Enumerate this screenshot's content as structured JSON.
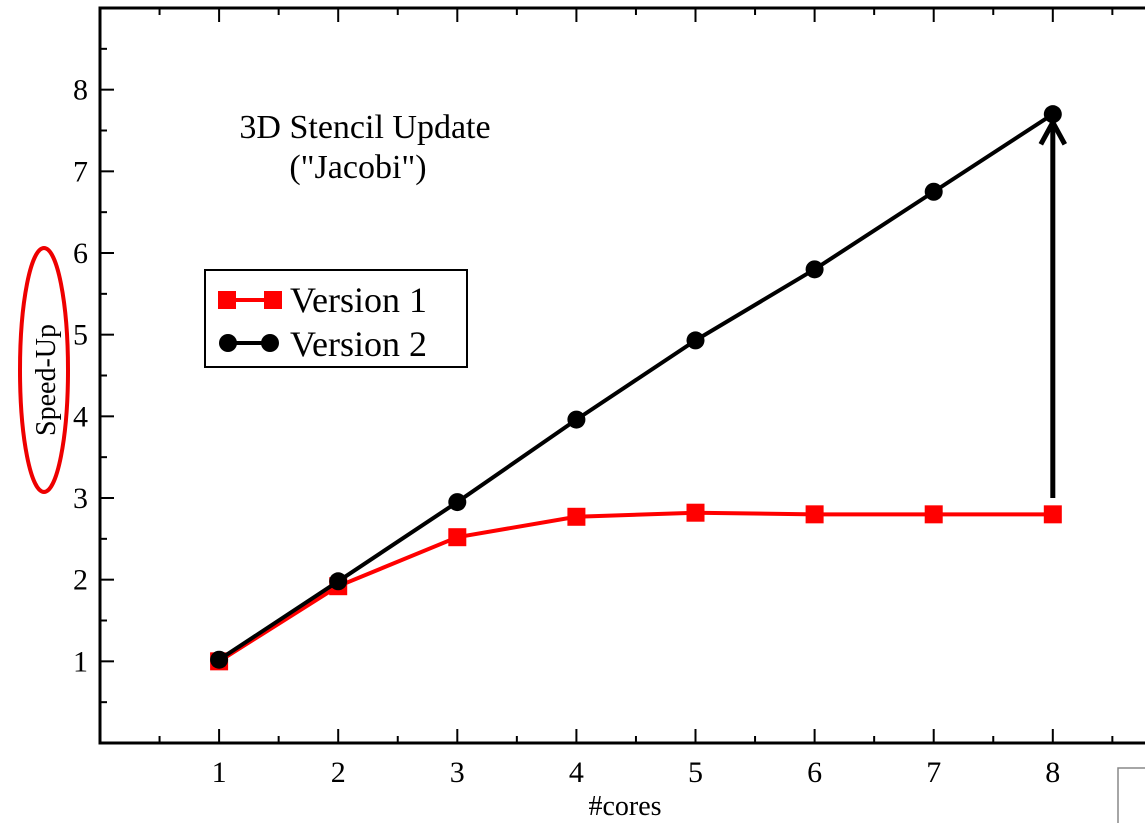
{
  "chart_data": {
    "type": "line",
    "title": "3D Stencil Update",
    "subtitle": "(\"Jacobi\")",
    "xlabel": "#cores",
    "ylabel": "Speed-Up",
    "x": [
      1,
      2,
      3,
      4,
      5,
      6,
      7,
      8
    ],
    "xlim": [
      0,
      8.9
    ],
    "ylim": [
      0,
      9
    ],
    "xticks": [
      "1",
      "2",
      "3",
      "4",
      "5",
      "6",
      "7",
      "8"
    ],
    "yticks": [
      "1",
      "2",
      "3",
      "4",
      "5",
      "6",
      "7",
      "8"
    ],
    "grid": false,
    "legend_position": "left",
    "series": [
      {
        "name": "Version 1",
        "color": "#ff0000",
        "marker": "square",
        "values": [
          1.0,
          1.92,
          2.52,
          2.77,
          2.82,
          2.8,
          2.8,
          2.8
        ]
      },
      {
        "name": "Version 2",
        "color": "#000000",
        "marker": "circle",
        "values": [
          1.02,
          1.98,
          2.95,
          3.96,
          4.93,
          5.8,
          6.75,
          7.7
        ]
      }
    ],
    "annotations": [
      {
        "type": "arrow",
        "x": 8,
        "from_y": 3.0,
        "to_y": 7.6,
        "color": "#000000"
      },
      {
        "type": "ellipse-highlight",
        "target": "ylabel",
        "color": "#ee0000"
      }
    ]
  }
}
